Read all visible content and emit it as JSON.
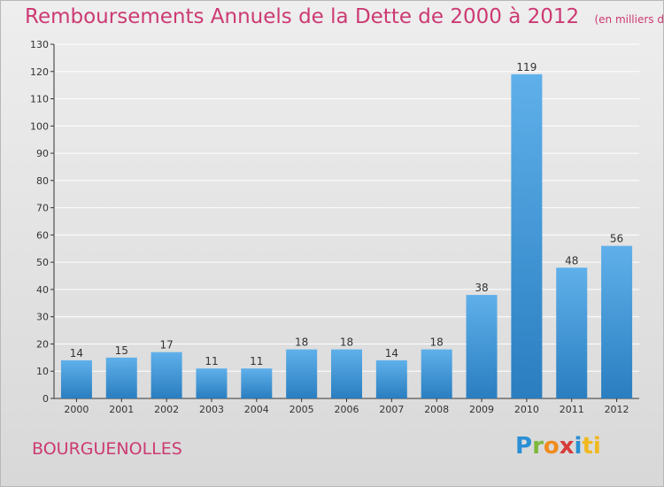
{
  "header": {
    "title": "Remboursements Annuels de la Dette de 2000 à 2012",
    "subtitle": "(en milliers d'€)"
  },
  "footer": {
    "commune": "BOURGUENOLLES",
    "logo": [
      "P",
      "r",
      "o",
      "x",
      "i",
      "ti"
    ]
  },
  "chart_data": {
    "type": "bar",
    "title": "Remboursements Annuels de la Dette de 2000 à 2012",
    "unit": "(en milliers d'€)",
    "categories": [
      "2000",
      "2001",
      "2002",
      "2003",
      "2004",
      "2005",
      "2006",
      "2007",
      "2008",
      "2009",
      "2010",
      "2011",
      "2012"
    ],
    "values": [
      14,
      15,
      17,
      11,
      11,
      18,
      18,
      14,
      18,
      38,
      119,
      48,
      56
    ],
    "ylim": [
      0,
      130
    ],
    "yticks": [
      0,
      10,
      20,
      30,
      40,
      50,
      60,
      70,
      80,
      90,
      100,
      110,
      120,
      130
    ],
    "xlabel": "",
    "ylabel": "",
    "grid": true,
    "colors": {
      "bar_top": "#5fb0ea",
      "bar_bottom": "#2a7ec0",
      "grid": "#ffffff",
      "title": "#cc3a73"
    }
  }
}
